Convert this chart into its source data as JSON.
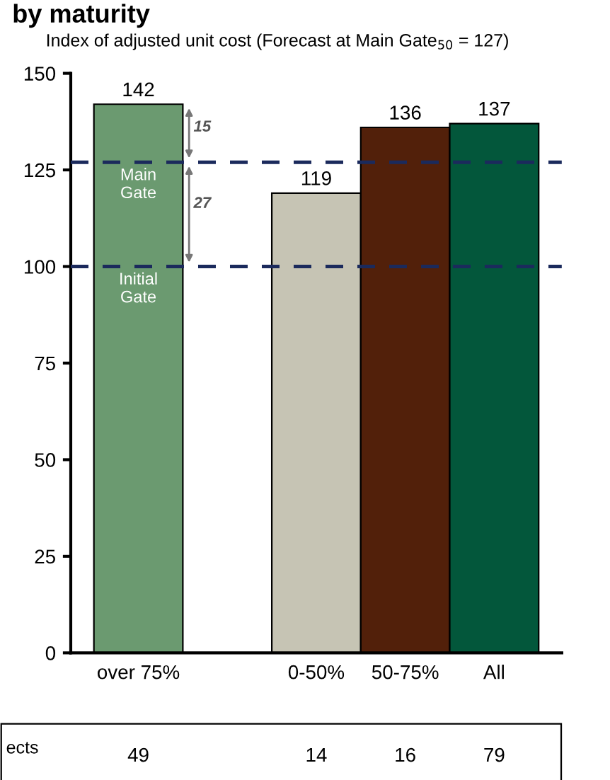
{
  "chart_data": {
    "type": "bar",
    "title": "by maturity",
    "subtitle": "Index of adjusted unit cost (Forecast at Main Gate$_{50}$ = 127)",
    "categories": [
      "over 75%",
      null,
      "0-50%",
      "50-75%",
      "All"
    ],
    "values": [
      142,
      null,
      119,
      136,
      137
    ],
    "colors": [
      "#6b9a70",
      "#ffffff",
      "#c6c4b4",
      "#52200a",
      "#03573b"
    ],
    "data_labels": true,
    "ylim": [
      0,
      150
    ],
    "yticks": [
      0,
      25,
      50,
      75,
      100,
      125,
      150
    ],
    "ref_lines": [
      {
        "axis": "y",
        "value": 127,
        "label": "Main Gate",
        "color": "#1b2a5c",
        "line_style": "dashed"
      },
      {
        "axis": "y",
        "value": 100,
        "label": "Initial Gate",
        "color": "#1b2a5c",
        "line_style": "dashed"
      }
    ],
    "annotations": [
      "15",
      "27",
      "ects",
      "49",
      "14",
      "16",
      "79"
    ],
    "grid": false
  }
}
